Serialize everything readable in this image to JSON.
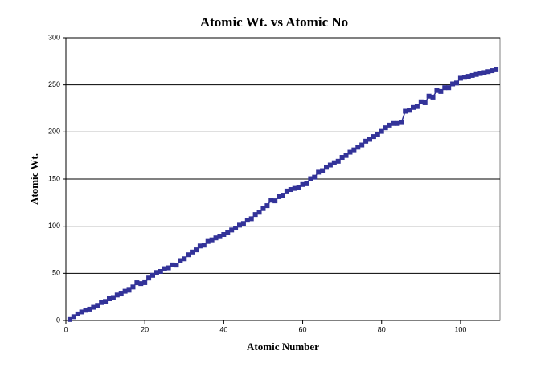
{
  "chart_data": {
    "type": "line",
    "title": "Atomic Wt. vs Atomic No",
    "x_label": "Atomic Number",
    "y_label": "Atomic Wt.",
    "x": [
      1,
      2,
      3,
      4,
      5,
      6,
      7,
      8,
      9,
      10,
      11,
      12,
      13,
      14,
      15,
      16,
      17,
      18,
      19,
      20,
      21,
      22,
      23,
      24,
      25,
      26,
      27,
      28,
      29,
      30,
      31,
      32,
      33,
      34,
      35,
      36,
      37,
      38,
      39,
      40,
      41,
      42,
      43,
      44,
      45,
      46,
      47,
      48,
      49,
      50,
      51,
      52,
      53,
      54,
      55,
      56,
      57,
      58,
      59,
      60,
      61,
      62,
      63,
      64,
      65,
      66,
      67,
      68,
      69,
      70,
      71,
      72,
      73,
      74,
      75,
      76,
      77,
      78,
      79,
      80,
      81,
      82,
      83,
      84,
      85,
      86,
      87,
      88,
      89,
      90,
      91,
      92,
      93,
      94,
      95,
      96,
      97,
      98,
      99,
      100,
      101,
      102,
      103,
      104,
      105,
      106,
      107,
      108,
      109
    ],
    "series": [
      {
        "name": "Atomic Wt.",
        "color": "#333399",
        "values": [
          1.0,
          4.0,
          6.9,
          9.0,
          10.8,
          12.0,
          14.0,
          16.0,
          19.0,
          20.2,
          23.0,
          24.3,
          27.0,
          28.1,
          31.0,
          32.1,
          35.5,
          40.0,
          39.1,
          40.1,
          45.0,
          47.9,
          50.9,
          52.0,
          54.9,
          55.8,
          58.9,
          58.7,
          63.5,
          65.4,
          69.7,
          72.6,
          74.9,
          79.0,
          79.9,
          83.8,
          85.5,
          87.6,
          88.9,
          91.2,
          92.9,
          96.0,
          98.0,
          101.1,
          102.9,
          106.4,
          107.9,
          112.4,
          114.8,
          118.7,
          121.8,
          127.6,
          126.9,
          131.3,
          132.9,
          137.3,
          138.9,
          140.1,
          140.9,
          144.2,
          145.0,
          150.4,
          152.0,
          157.3,
          158.9,
          162.5,
          164.9,
          167.3,
          168.9,
          173.0,
          175.0,
          178.5,
          181.0,
          183.8,
          186.2,
          190.2,
          192.2,
          195.1,
          197.0,
          200.6,
          204.4,
          207.2,
          209.0,
          209.0,
          210.0,
          222.0,
          223.0,
          226.0,
          227.0,
          232.0,
          231.0,
          238.0,
          237.0,
          244.0,
          243.0,
          247.0,
          247.0,
          251.0,
          252.0,
          257.0,
          258.0,
          259.0,
          260.0,
          261.0,
          262.0,
          263.0,
          264.0,
          265.0,
          266.0
        ]
      }
    ],
    "xlim": [
      0,
      110
    ],
    "xticks": [
      0,
      20,
      40,
      60,
      80,
      100
    ],
    "ylim": [
      0,
      300
    ],
    "yticks": [
      0,
      50,
      100,
      150,
      200,
      250,
      300
    ],
    "grid": true
  }
}
